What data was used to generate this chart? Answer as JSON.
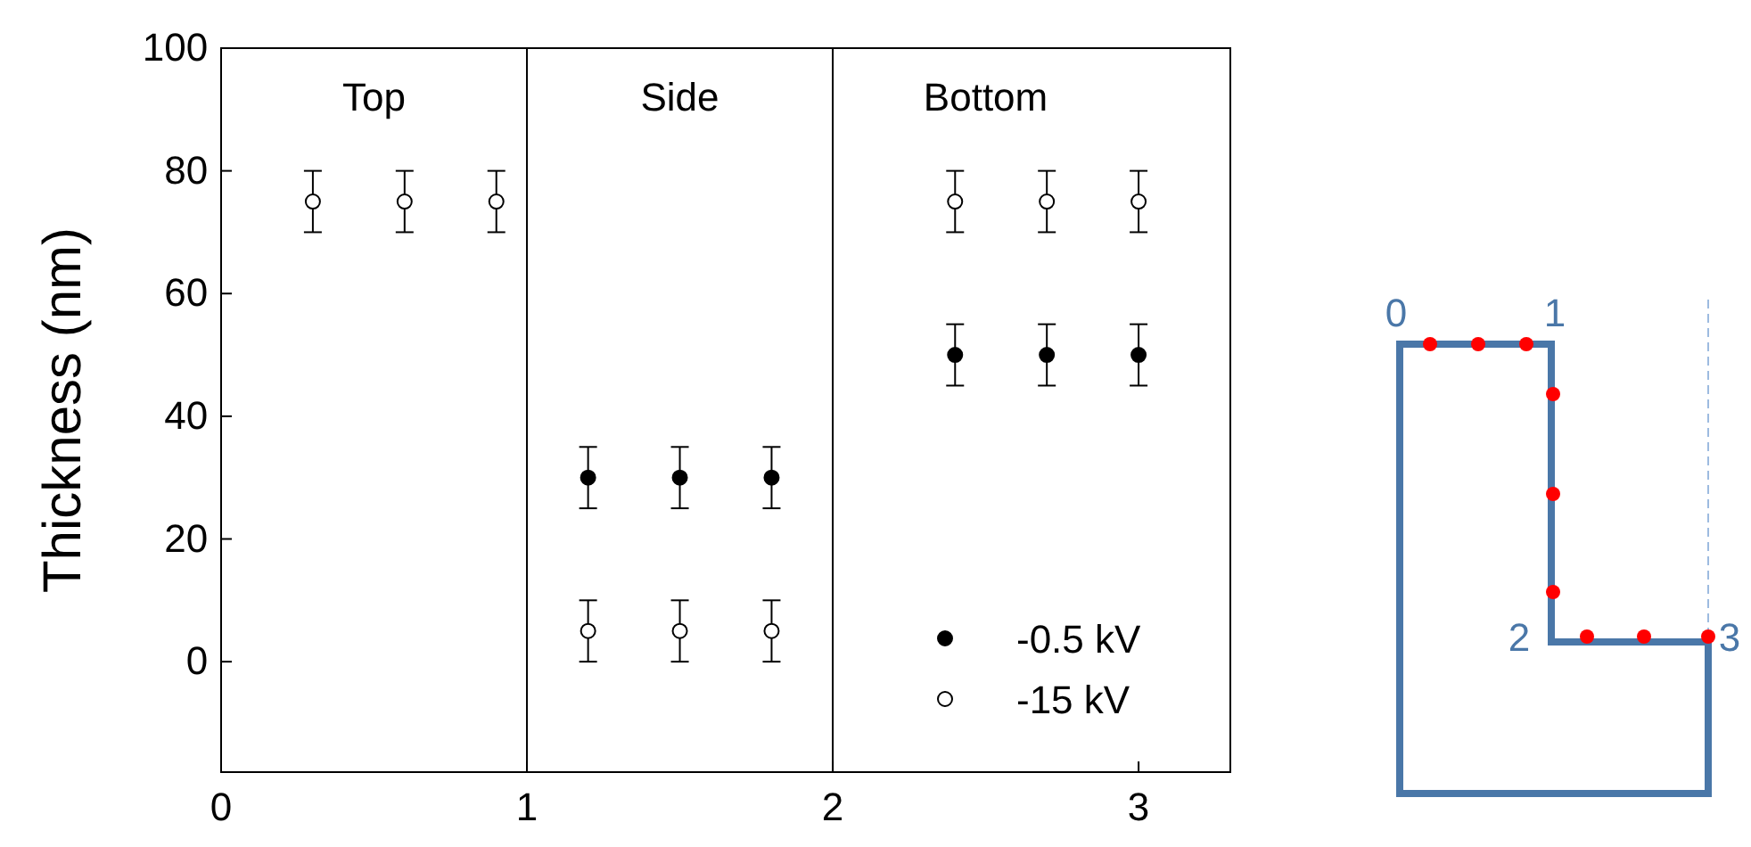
{
  "chart_data": {
    "type": "scatter",
    "ylabel": "Thickness (nm)",
    "xlim": [
      0,
      3.3
    ],
    "xticks": [
      0,
      1,
      2,
      3
    ],
    "ylim": [
      -18,
      100
    ],
    "yticks": [
      0,
      20,
      40,
      60,
      80,
      100
    ],
    "marker": "circle",
    "legend": "bottom right",
    "grid": false,
    "ref_lines": [
      {
        "axis": "x",
        "value": 1,
        "color": "#000000"
      },
      {
        "axis": "x",
        "value": 2,
        "color": "#000000"
      }
    ],
    "annotations": [
      "Top",
      "Side",
      "Bottom",
      "0",
      "1",
      "2",
      "3"
    ],
    "series": [
      {
        "name": "-0.5 kV",
        "color": "#000000",
        "x": [
          1.2,
          1.5,
          1.8,
          2.4,
          2.7,
          3.0
        ],
        "values": [
          30,
          30,
          30,
          50,
          50,
          50
        ],
        "errors": [
          5,
          5,
          5,
          5,
          5,
          5
        ]
      },
      {
        "name": "-15 kV",
        "color": "#000000",
        "x": [
          0.3,
          0.6,
          0.9,
          1.2,
          1.5,
          1.8,
          2.4,
          2.7,
          3.0
        ],
        "values": [
          75,
          75,
          75,
          5,
          5,
          5,
          75,
          75,
          75
        ],
        "errors": [
          5,
          5,
          5,
          5,
          5,
          5,
          5,
          5,
          5
        ]
      }
    ]
  }
}
